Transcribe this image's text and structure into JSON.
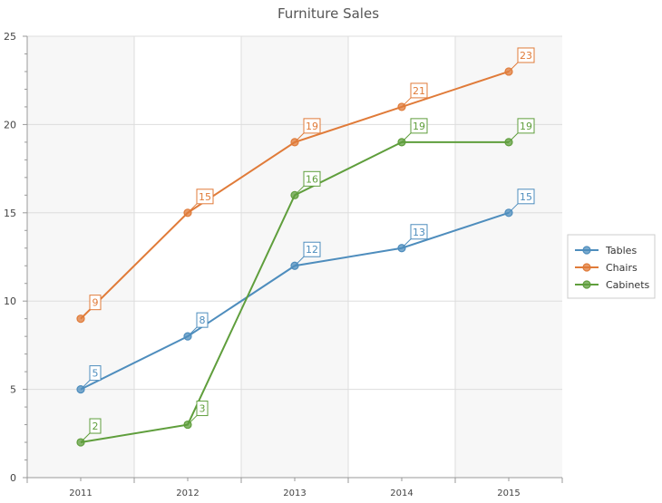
{
  "chart_data": {
    "type": "line",
    "title": "Furniture Sales",
    "xlabel": "",
    "ylabel": "",
    "categories": [
      "2011",
      "2012",
      "2013",
      "2014",
      "2015"
    ],
    "ylim": [
      0,
      25
    ],
    "yticks": [
      "0",
      "5",
      "10",
      "15",
      "20",
      "25"
    ],
    "grid": true,
    "legend": "right",
    "series": [
      {
        "name": "Tables",
        "values": [
          5,
          8,
          12,
          13,
          15
        ],
        "color": "#4e8dbd"
      },
      {
        "name": "Chairs",
        "values": [
          9,
          15,
          19,
          21,
          23
        ],
        "color": "#e07b39"
      },
      {
        "name": "Cabinets",
        "values": [
          2,
          3,
          16,
          19,
          19
        ],
        "color": "#5f9e3c"
      }
    ]
  }
}
